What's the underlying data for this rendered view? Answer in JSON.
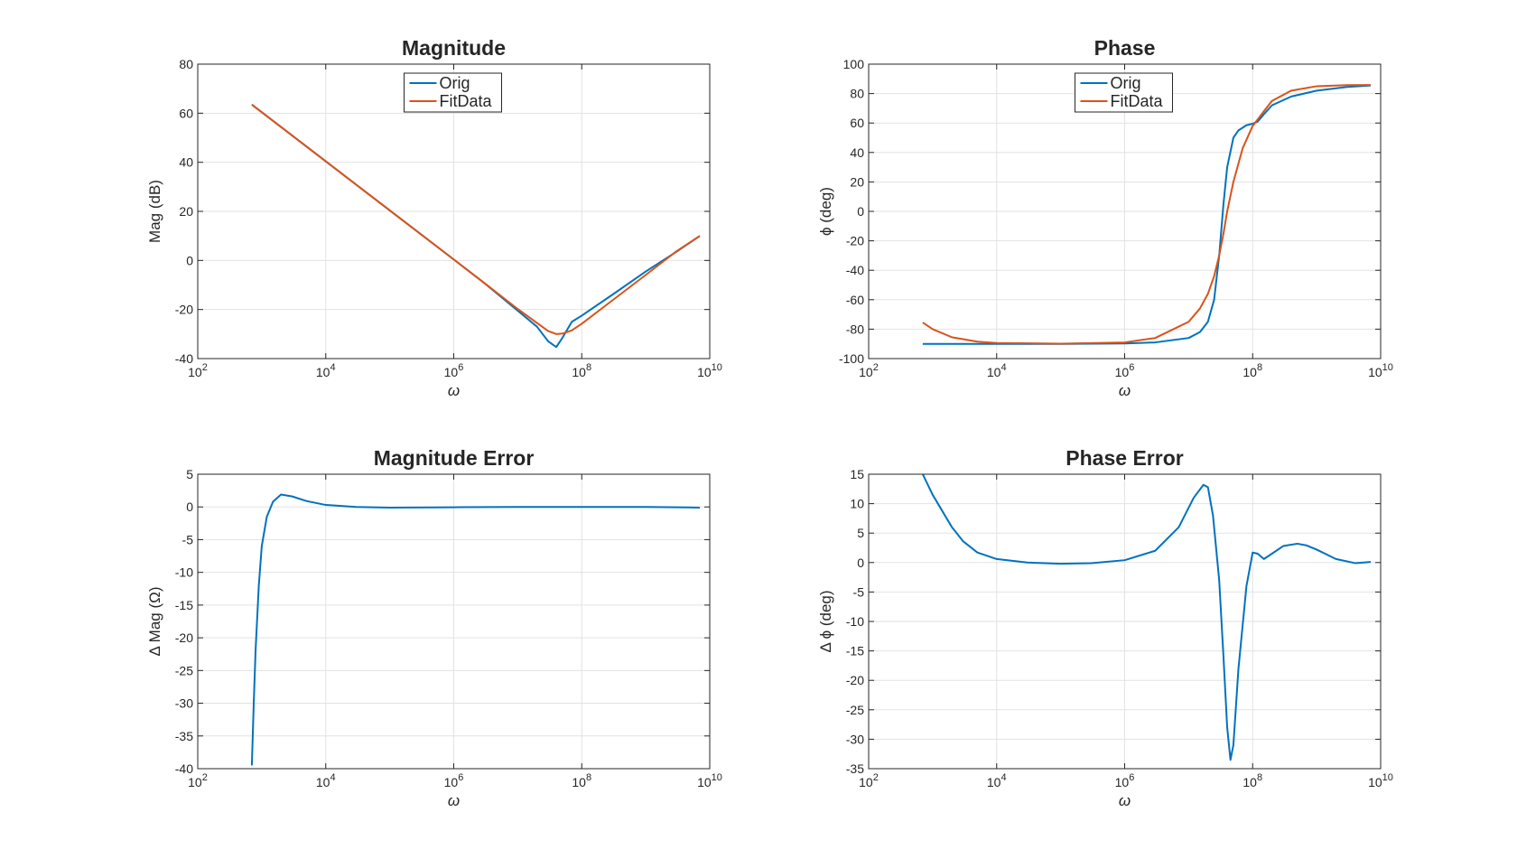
{
  "colors": {
    "orig": "#0072BD",
    "fit": "#D95319"
  },
  "chart_data": [
    {
      "id": "mag",
      "type": "line",
      "title": "Magnitude",
      "xlabel": "ω",
      "ylabel": "Mag (dB)",
      "xscale": "log",
      "xlim": [
        100,
        10000000000
      ],
      "ylim": [
        -40,
        80
      ],
      "xticks": [
        100,
        10000,
        1000000,
        100000000,
        10000000000
      ],
      "xtick_base": [
        "10",
        "10",
        "10",
        "10",
        "10"
      ],
      "xtick_exp": [
        "2",
        "4",
        "6",
        "8",
        "10"
      ],
      "yticks": [
        -40,
        -20,
        0,
        20,
        40,
        60,
        80
      ],
      "ytick_labels": [
        "-40",
        "-20",
        "0",
        "20",
        "40",
        "60",
        "80"
      ],
      "grid": true,
      "legend": {
        "location": "top-center",
        "entries": [
          "Orig",
          "FitData"
        ]
      },
      "series": [
        {
          "name": "Orig",
          "color": "orig",
          "x": [
            700,
            10000,
            100000,
            1000000,
            3000000,
            10000000,
            20000000,
            30000000,
            40000000,
            50000000,
            70000000,
            100000000,
            300000000,
            1000000000,
            3000000000,
            7000000000
          ],
          "y": [
            63.5,
            40.4,
            20.4,
            0.4,
            -9.2,
            -20.5,
            -27,
            -33,
            -35.3,
            -31.5,
            -25,
            -22.5,
            -14,
            -4.5,
            3.5,
            10
          ]
        },
        {
          "name": "FitData",
          "color": "fit",
          "x": [
            700,
            10000,
            100000,
            1000000,
            3000000,
            10000000,
            20000000,
            30000000,
            40000000,
            50000000,
            70000000,
            100000000,
            300000000,
            1000000000,
            3000000000,
            7000000000
          ],
          "y": [
            63.5,
            40.4,
            20.4,
            0.4,
            -9.2,
            -19.8,
            -25.5,
            -28.8,
            -30,
            -29.8,
            -28.5,
            -25.8,
            -16.3,
            -5.9,
            3.7,
            10
          ]
        }
      ]
    },
    {
      "id": "phase",
      "type": "line",
      "title": "Phase",
      "xlabel": "ω",
      "ylabel": "ϕ (deg)",
      "xscale": "log",
      "xlim": [
        100,
        10000000000
      ],
      "ylim": [
        -100,
        100
      ],
      "xticks": [
        100,
        10000,
        1000000,
        100000000,
        10000000000
      ],
      "xtick_base": [
        "10",
        "10",
        "10",
        "10",
        "10"
      ],
      "xtick_exp": [
        "2",
        "4",
        "6",
        "8",
        "10"
      ],
      "yticks": [
        -100,
        -80,
        -60,
        -40,
        -20,
        0,
        20,
        40,
        60,
        80,
        100
      ],
      "ytick_labels": [
        "-100",
        "-80",
        "-60",
        "-40",
        "-20",
        "0",
        "20",
        "40",
        "60",
        "80",
        "100"
      ],
      "grid": true,
      "legend": {
        "location": "top-center",
        "entries": [
          "Orig",
          "FitData"
        ]
      },
      "series": [
        {
          "name": "Orig",
          "color": "orig",
          "x": [
            700,
            10000,
            100000,
            1000000,
            3000000,
            10000000,
            15000000,
            20000000,
            25000000,
            30000000,
            35000000,
            40000000,
            50000000,
            60000000,
            80000000,
            100000000,
            120000000,
            150000000,
            200000000,
            400000000,
            1000000000,
            3000000000,
            7000000000
          ],
          "y": [
            -90,
            -90,
            -90,
            -89.7,
            -89,
            -86,
            -82,
            -75,
            -60,
            -30,
            5,
            30,
            50,
            55,
            58.5,
            59.5,
            61,
            66,
            72,
            78,
            82,
            84.5,
            85.5
          ]
        },
        {
          "name": "FitData",
          "color": "fit",
          "x": [
            700,
            1000,
            2000,
            5000,
            10000,
            100000,
            1000000,
            3000000,
            10000000,
            15000000,
            20000000,
            25000000,
            30000000,
            35000000,
            40000000,
            50000000,
            70000000,
            100000000,
            150000000,
            200000000,
            400000000,
            1000000000,
            3000000000,
            7000000000
          ],
          "y": [
            -75.5,
            -80,
            -85.5,
            -88.5,
            -89.4,
            -89.9,
            -89,
            -86,
            -75,
            -66,
            -56,
            -44,
            -30,
            -15,
            0,
            20,
            43,
            58,
            68,
            75,
            82,
            85,
            85.7,
            85.8
          ]
        }
      ]
    },
    {
      "id": "magerr",
      "type": "line",
      "title": "Magnitude Error",
      "xlabel": "ω",
      "ylabel": "Δ Mag (Ω)",
      "xscale": "log",
      "xlim": [
        100,
        10000000000
      ],
      "ylim": [
        -40,
        5
      ],
      "xticks": [
        100,
        10000,
        1000000,
        100000000,
        10000000000
      ],
      "xtick_base": [
        "10",
        "10",
        "10",
        "10",
        "10"
      ],
      "xtick_exp": [
        "2",
        "4",
        "6",
        "8",
        "10"
      ],
      "yticks": [
        -40,
        -35,
        -30,
        -25,
        -20,
        -15,
        -10,
        -5,
        0,
        5
      ],
      "ytick_labels": [
        "-40",
        "-35",
        "-30",
        "-25",
        "-20",
        "-15",
        "-10",
        "-5",
        "0",
        "5"
      ],
      "grid": true,
      "series": [
        {
          "name": "",
          "color": "orig",
          "x": [
            700,
            750,
            800,
            900,
            1000,
            1200,
            1500,
            2000,
            3000,
            5000,
            10000,
            30000,
            100000,
            1000000,
            10000000,
            100000000,
            1000000000,
            7000000000
          ],
          "y": [
            -39.5,
            -30,
            -22,
            -12,
            -6,
            -1.5,
            0.8,
            1.9,
            1.6,
            0.9,
            0.3,
            0,
            -0.1,
            -0.05,
            0,
            0,
            0,
            -0.1
          ]
        }
      ]
    },
    {
      "id": "phaseerr",
      "type": "line",
      "title": "Phase Error",
      "xlabel": "ω",
      "ylabel": "Δ ϕ (deg)",
      "xscale": "log",
      "xlim": [
        100,
        10000000000
      ],
      "ylim": [
        -35,
        15
      ],
      "xticks": [
        100,
        10000,
        1000000,
        100000000,
        10000000000
      ],
      "xtick_base": [
        "10",
        "10",
        "10",
        "10",
        "10"
      ],
      "xtick_exp": [
        "2",
        "4",
        "6",
        "8",
        "10"
      ],
      "yticks": [
        -35,
        -30,
        -25,
        -20,
        -15,
        -10,
        -5,
        0,
        5,
        10,
        15
      ],
      "ytick_labels": [
        "-35",
        "-30",
        "-25",
        "-20",
        "-15",
        "-10",
        "-5",
        "0",
        "5",
        "10",
        "15"
      ],
      "grid": true,
      "series": [
        {
          "name": "",
          "color": "orig",
          "x": [
            700,
            1000,
            2000,
            3000,
            5000,
            10000,
            30000,
            100000,
            300000,
            1000000,
            3000000,
            7000000,
            12000000,
            17000000,
            20000000,
            24000000,
            30000000,
            35000000,
            40000000,
            45000000,
            50000000,
            60000000,
            80000000,
            100000000,
            120000000,
            150000000,
            200000000,
            300000000,
            500000000,
            700000000,
            1000000000,
            2000000000,
            4000000000,
            7000000000
          ],
          "y": [
            15,
            11.5,
            6,
            3.6,
            1.7,
            0.6,
            0,
            -0.2,
            -0.1,
            0.4,
            2,
            6,
            11,
            13.2,
            12.8,
            8,
            -3,
            -16,
            -28,
            -33.5,
            -31,
            -18,
            -4,
            1.7,
            1.5,
            0.6,
            1.5,
            2.8,
            3.2,
            2.9,
            2.2,
            0.6,
            -0.1,
            0.1
          ]
        }
      ]
    }
  ]
}
